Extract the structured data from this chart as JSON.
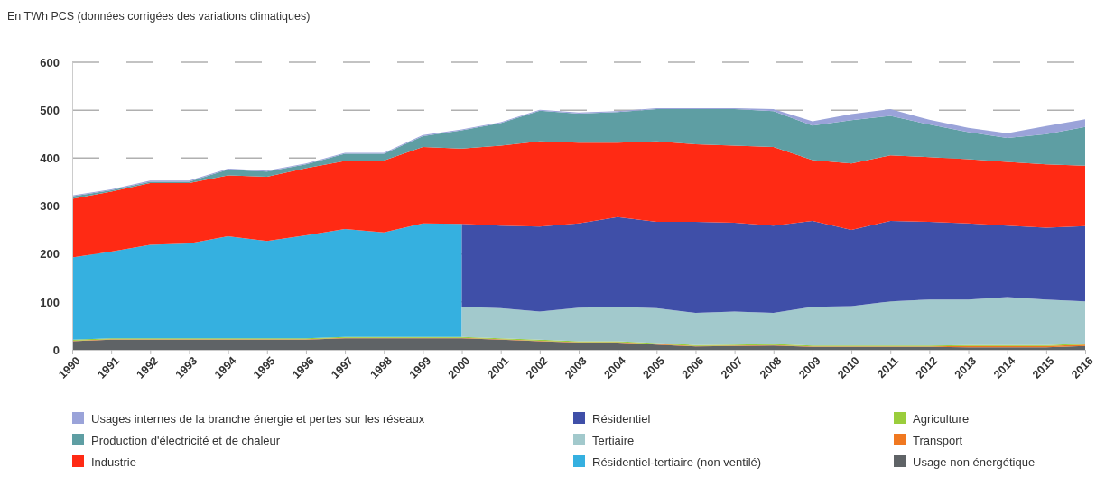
{
  "chart_data": {
    "type": "area",
    "stacked": true,
    "title": "En TWh PCS (données corrigées des variations climatiques)",
    "x": [
      1990,
      1991,
      1992,
      1993,
      1994,
      1995,
      1996,
      1997,
      1998,
      1999,
      2000,
      2000,
      2001,
      2002,
      2003,
      2004,
      2005,
      2006,
      2007,
      2008,
      2009,
      2010,
      2011,
      2012,
      2013,
      2014,
      2015,
      2016
    ],
    "xlim": [
      1990,
      2016
    ],
    "xticks": [
      1990,
      1991,
      1992,
      1993,
      1994,
      1995,
      1996,
      1997,
      1998,
      1999,
      2000,
      2001,
      2002,
      2003,
      2004,
      2005,
      2006,
      2007,
      2008,
      2009,
      2010,
      2011,
      2012,
      2013,
      2014,
      2015,
      2016
    ],
    "ylim": [
      0,
      600
    ],
    "yticks": [
      0,
      100,
      200,
      300,
      400,
      500,
      600
    ],
    "grid": "y",
    "legend": "bottom",
    "series": [
      {
        "name": "Usage non énergétique",
        "color": "#5f6366",
        "values": [
          18,
          21,
          21,
          21,
          21,
          21,
          21,
          24,
          24,
          24,
          24,
          24,
          21,
          18,
          15,
          15,
          11,
          7,
          8,
          9,
          6,
          6,
          6,
          6,
          5,
          5,
          5,
          8
        ]
      },
      {
        "name": "Transport",
        "color": "#f07820",
        "values": [
          1,
          1,
          1,
          1,
          1,
          1,
          1,
          1,
          1,
          1,
          1,
          1,
          1,
          1,
          1,
          1,
          1,
          1,
          1,
          1,
          1,
          1,
          1,
          1,
          3,
          3,
          3,
          3
        ]
      },
      {
        "name": "Agriculture",
        "color": "#9acd3c",
        "values": [
          2,
          2,
          2,
          2,
          2,
          2,
          2,
          2,
          2,
          2,
          2,
          2,
          2,
          2,
          2,
          2,
          2,
          2,
          2,
          2,
          2,
          2,
          2,
          2,
          2,
          2,
          2,
          2
        ]
      },
      {
        "name": "Résidentiel-tertiaire (non ventilé)",
        "color": "#35b0e0",
        "values": [
          172,
          181,
          195,
          198,
          213,
          203,
          215,
          225,
          218,
          237,
          236,
          null,
          null,
          null,
          null,
          null,
          null,
          null,
          null,
          null,
          null,
          null,
          null,
          null,
          null,
          null,
          null,
          null
        ]
      },
      {
        "name": "Tertiaire",
        "color": "#a2c9cc",
        "values": [
          null,
          null,
          null,
          null,
          null,
          null,
          null,
          null,
          null,
          null,
          null,
          63,
          63,
          59,
          70,
          72,
          73,
          67,
          69,
          65,
          81,
          82,
          92,
          96,
          95,
          100,
          95,
          88
        ]
      },
      {
        "name": "Résidentiel",
        "color": "#3f4fa8",
        "values": [
          null,
          null,
          null,
          null,
          null,
          null,
          null,
          null,
          null,
          null,
          null,
          173,
          172,
          177,
          176,
          187,
          180,
          190,
          185,
          182,
          179,
          159,
          168,
          162,
          159,
          149,
          150,
          157
        ]
      },
      {
        "name": "Industrie",
        "color": "#ff2a14",
        "values": [
          122,
          125,
          129,
          126,
          127,
          134,
          140,
          142,
          150,
          159,
          157,
          157,
          167,
          178,
          168,
          155,
          168,
          162,
          161,
          164,
          127,
          139,
          137,
          135,
          134,
          133,
          132,
          126
        ]
      },
      {
        "name": "Production d'électricité et de chaleur",
        "color": "#5e9ea3",
        "values": [
          5,
          3,
          3,
          3,
          12,
          11,
          8,
          15,
          14,
          23,
          38,
          38,
          47,
          64,
          61,
          64,
          67,
          73,
          76,
          75,
          72,
          90,
          82,
          68,
          56,
          50,
          63,
          81
        ]
      },
      {
        "name": "Usages internes de la branche énergie et pertes sur les réseaux",
        "color": "#9aa3d9",
        "values": [
          2,
          2,
          2,
          2,
          2,
          2,
          2,
          2,
          2,
          2,
          2,
          2,
          2,
          2,
          2,
          2,
          2,
          2,
          2,
          4,
          9,
          13,
          14,
          10,
          9,
          10,
          17,
          16
        ]
      }
    ]
  }
}
